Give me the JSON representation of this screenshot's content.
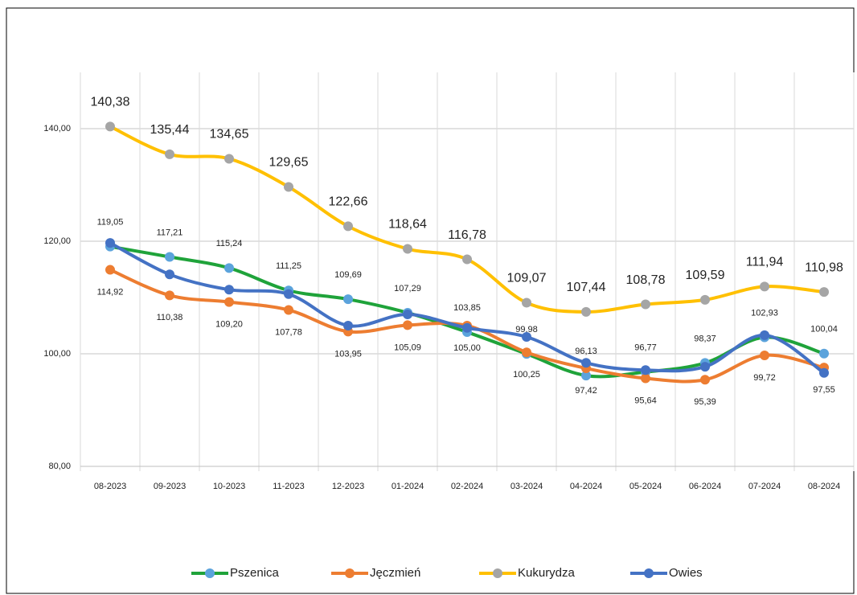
{
  "chart_data": {
    "type": "line",
    "categories": [
      "08-2023",
      "09-2023",
      "10-2023",
      "11-2023",
      "12-2023",
      "01-2024",
      "02-2024",
      "03-2024",
      "04-2024",
      "05-2024",
      "06-2024",
      "07-2024",
      "08-2024"
    ],
    "series": [
      {
        "name": "Pszenica",
        "color": "#1fa33a",
        "marker_color": "#5ba3dc",
        "values": [
          119.05,
          117.21,
          115.24,
          111.25,
          109.69,
          107.29,
          103.85,
          99.98,
          96.13,
          96.77,
          98.37,
          102.93,
          100.04
        ],
        "value_labels": [
          "119,05",
          "117,21",
          "115,24",
          "111,25",
          "109,69",
          "107,29",
          "103,85",
          "99,98",
          "96,13",
          "96,77",
          "98,37",
          "102,93",
          "100,04"
        ]
      },
      {
        "name": "Jęczmień",
        "color": "#ed7d31",
        "marker_color": "#ed7d31",
        "values": [
          114.92,
          110.38,
          109.2,
          107.78,
          103.95,
          105.09,
          105.0,
          100.25,
          97.42,
          95.64,
          95.39,
          99.72,
          97.55
        ],
        "value_labels": [
          "114,92",
          "110,38",
          "109,20",
          "107,78",
          "103,95",
          "105,09",
          "105,00",
          "100,25",
          "97,42",
          "95,64",
          "95,39",
          "99,72",
          "97,55"
        ]
      },
      {
        "name": "Kukurydza",
        "color": "#ffc000",
        "marker_color": "#a5a5a5",
        "values": [
          140.38,
          135.44,
          134.65,
          129.65,
          122.66,
          118.64,
          116.78,
          109.07,
          107.44,
          108.78,
          109.59,
          111.94,
          110.98
        ],
        "value_labels": [
          "140,38",
          "135,44",
          "134,65",
          "129,65",
          "122,66",
          "118,64",
          "116,78",
          "109,07",
          "107,44",
          "108,78",
          "109,59",
          "111,94",
          "110,98"
        ]
      },
      {
        "name": "Owies",
        "color": "#4472c4",
        "marker_color": "#4472c4",
        "values": [
          119.7,
          114.1,
          111.4,
          110.6,
          105.0,
          107.0,
          104.6,
          103.0,
          98.4,
          97.1,
          97.7,
          103.3,
          96.6
        ]
      }
    ],
    "ylim": [
      80,
      150
    ],
    "yticks": [
      {
        "value": 80,
        "label": "80,00"
      },
      {
        "value": 100,
        "label": "100,00"
      },
      {
        "value": 120,
        "label": "120,00"
      },
      {
        "value": 140,
        "label": "140,00"
      }
    ],
    "grid": true,
    "legend": "bottom"
  }
}
